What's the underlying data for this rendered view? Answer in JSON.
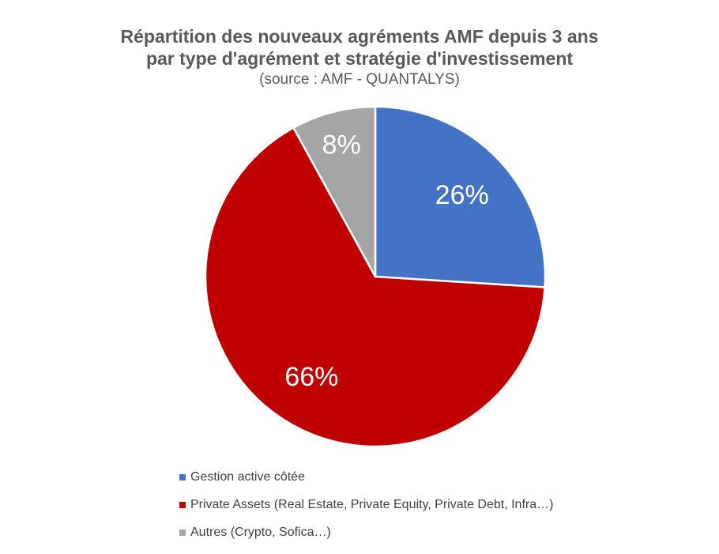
{
  "chart_data": {
    "type": "pie",
    "title_line1": "Répartition des nouveaux agréments AMF depuis 3 ans",
    "title_line2": "par type d'agrément et stratégie d'investissement",
    "subtitle": "(source : AMF - QUANTALYS)",
    "slices": [
      {
        "label": "Gestion active côtée",
        "value": 26,
        "display": "26%",
        "color": "#4472c4"
      },
      {
        "label": "Private Assets (Real Estate, Private Equity, Private Debt, Infra…)",
        "value": 66,
        "display": "66%",
        "color": "#c00000"
      },
      {
        "label": "Autres (Crypto, Sofica…)",
        "value": 8,
        "display": "8%",
        "color": "#a5a5a5"
      }
    ],
    "legend_position": "bottom"
  }
}
